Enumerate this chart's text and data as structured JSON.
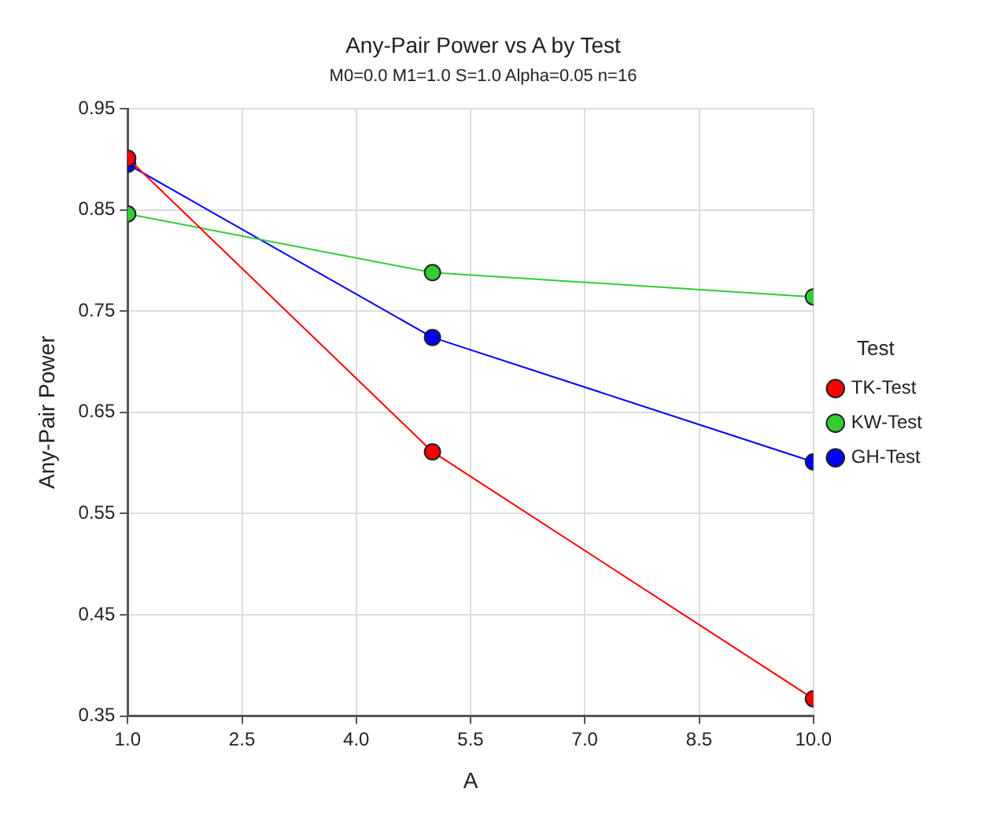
{
  "chart_data": {
    "type": "line",
    "title": "Any-Pair Power vs A by Test",
    "subtitle": "M0=0.0 M1=1.0 S=1.0 Alpha=0.05 n=16",
    "xlabel": "A",
    "ylabel": "Any-Pair Power",
    "legend_title": "Test",
    "x": [
      1,
      5,
      10
    ],
    "series": [
      {
        "name": "TK-Test",
        "color": "#ff0000",
        "values": [
          0.901,
          0.611,
          0.367
        ]
      },
      {
        "name": "KW-Test",
        "color": "#33cc33",
        "values": [
          0.846,
          0.788,
          0.764
        ]
      },
      {
        "name": "GH-Test",
        "color": "#0000ff",
        "values": [
          0.895,
          0.724,
          0.601
        ]
      }
    ],
    "xlim": [
      1,
      10
    ],
    "xticks": [
      {
        "value": 1,
        "label": "1.0"
      },
      {
        "value": 2.5,
        "label": "2.5"
      },
      {
        "value": 4,
        "label": "4.0"
      },
      {
        "value": 5.5,
        "label": "5.5"
      },
      {
        "value": 7,
        "label": "7.0"
      },
      {
        "value": 8.5,
        "label": "8.5"
      },
      {
        "value": 10,
        "label": "10.0"
      }
    ],
    "ylim": [
      0.35,
      0.95
    ],
    "yticks": [
      0.35,
      0.45,
      0.55,
      0.65,
      0.75,
      0.85,
      0.95
    ],
    "grid": true,
    "legend": "right",
    "marker": "circle",
    "line_style": "solid"
  }
}
